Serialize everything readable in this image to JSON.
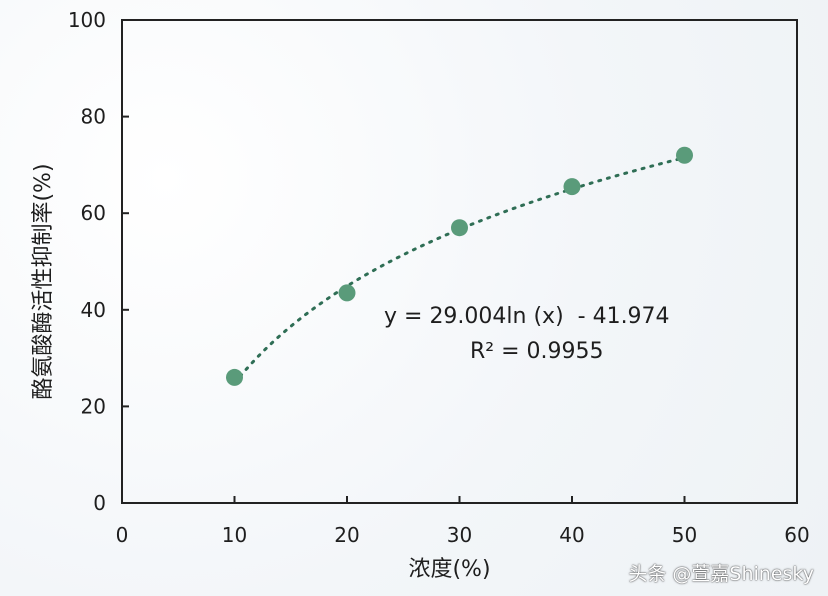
{
  "chart_data": {
    "type": "scatter",
    "title": "",
    "xlabel": "浓度(%)",
    "ylabel": "酪氨酸酶活性抑制率(%)",
    "xlim": [
      0,
      60
    ],
    "ylim": [
      0,
      100
    ],
    "xticks": [
      "0",
      "10",
      "20",
      "30",
      "40",
      "50",
      "60"
    ],
    "yticks": [
      "0",
      "20",
      "40",
      "60",
      "80",
      "100"
    ],
    "series": [
      {
        "x": [
          10,
          20,
          30,
          40,
          50
        ],
        "y": [
          26,
          43.5,
          57,
          65.5,
          72
        ]
      }
    ],
    "trendline": {
      "type": "log",
      "a": 29.004,
      "b": -41.974,
      "x_range": [
        10,
        50
      ],
      "style": "dotted"
    },
    "annotations": {
      "equation": "y = 29.004ln (x)  - 41.974",
      "r_squared": "R² = 0.9955"
    },
    "grid": false,
    "colors": {
      "marker": "#5a9b7a",
      "trendline": "#2f6e55",
      "axis": "#222222"
    }
  },
  "watermark": "头条 @萱嘉Shinesky"
}
